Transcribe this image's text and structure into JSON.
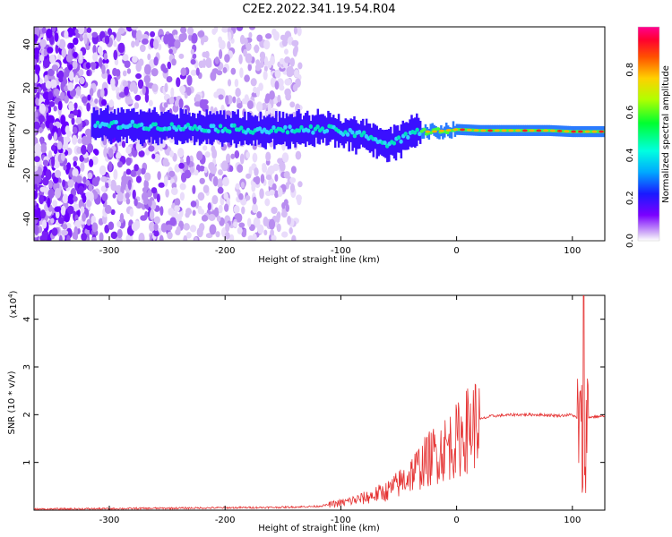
{
  "page_title": "C2E2.2022.341.19.54.R04",
  "chart_data": [
    {
      "type": "heatmap",
      "xlabel": "Height of straight line (km)",
      "ylabel": "Frequency (Hz)",
      "xlim": [
        -365,
        128
      ],
      "ylim": [
        -50,
        48
      ],
      "xticks": [
        -300,
        -200,
        -100,
        0,
        100
      ],
      "yticks": [
        -40,
        -20,
        0,
        20,
        40
      ],
      "colorbar": {
        "label": "Normalized spectral amplitude",
        "range": [
          0.0,
          1.0
        ],
        "ticks": [
          "0.0",
          "0.2",
          "0.4",
          "0.6",
          "0.8"
        ]
      },
      "ridge": {
        "x": [
          -315,
          -280,
          -240,
          -200,
          -160,
          -130,
          -110,
          -90,
          -75,
          -60,
          -50,
          -40,
          -30,
          -20,
          0,
          20,
          50,
          80,
          100,
          110,
          128
        ],
        "y": [
          3,
          3,
          2,
          1.5,
          0.5,
          1,
          1,
          -1,
          -2,
          -6,
          -4,
          -1,
          0,
          0,
          1,
          0.5,
          0.5,
          0.5,
          0,
          0,
          0
        ]
      }
    },
    {
      "type": "line",
      "xlabel": "Height of straight line (km)",
      "ylabel": "SNR (10 * v/v)",
      "yscale_label": "(x10",
      "yscale_exp": "4",
      "xlim": [
        -365,
        128
      ],
      "ylim": [
        0,
        4.5
      ],
      "xticks": [
        -300,
        -200,
        -100,
        0,
        100
      ],
      "yticks": [
        1,
        2,
        3,
        4
      ],
      "series": [
        {
          "color": "#e53232",
          "x": [
            -365,
            -300,
            -250,
            -200,
            -150,
            -120,
            -100,
            -80,
            -60,
            -50,
            -40,
            -30,
            -20,
            -10,
            0,
            10,
            20,
            30,
            50,
            70,
            90,
            100,
            105,
            108,
            110,
            112,
            115,
            128
          ],
          "y": [
            0.02,
            0.03,
            0.04,
            0.05,
            0.06,
            0.08,
            0.15,
            0.25,
            0.4,
            0.55,
            0.75,
            0.95,
            1.15,
            1.3,
            1.45,
            1.7,
            1.9,
            1.97,
            2.0,
            2.0,
            1.98,
            2.0,
            1.9,
            1.5,
            0.9,
            1.9,
            1.95,
            1.97
          ]
        }
      ]
    }
  ]
}
